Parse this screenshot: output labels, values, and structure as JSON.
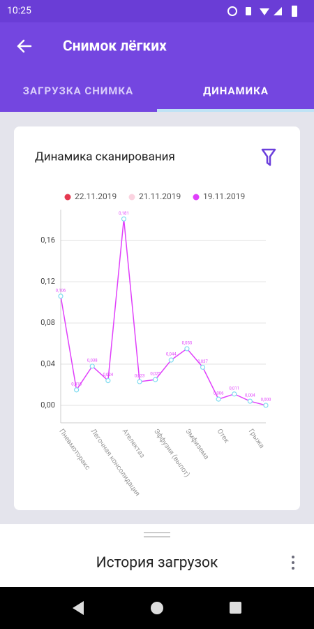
{
  "status_bar": {
    "time": "10:25"
  },
  "app_bar": {
    "title": "Снимок лёгких"
  },
  "tabs": [
    "ЗАГРУЗКА СНИМКА",
    "ДИНАМИКА"
  ],
  "card": {
    "title": "Динамика сканирования"
  },
  "bottom_sheet": {
    "title": "История загрузок"
  },
  "chart_data": {
    "type": "line",
    "categories": [
      "Пневмоторакс",
      null,
      "Легочная консолидация",
      null,
      "Ателектаз",
      null,
      "Эффузия (выпот)",
      null,
      "Эмфизема",
      null,
      "Отек",
      null,
      "Грыжа",
      null
    ],
    "series": [
      {
        "name": "22.11.2019",
        "color": "#e53950",
        "values": [
          null,
          null,
          null,
          null,
          null,
          null,
          null,
          null,
          null,
          null,
          null,
          null,
          null,
          null
        ]
      },
      {
        "name": "21.11.2019",
        "color": "#fbd3e0",
        "values": [
          null,
          null,
          null,
          null,
          null,
          null,
          null,
          null,
          null,
          null,
          null,
          null,
          null,
          null
        ]
      },
      {
        "name": "19.11.2019",
        "color": "#e040fb",
        "point_color": "#7fdcf0",
        "values": [
          0.106,
          0.015,
          0.038,
          0.024,
          0.181,
          0.023,
          0.025,
          0.044,
          0.055,
          0.037,
          0.006,
          0.011,
          0.004,
          0.0
        ],
        "value_labels": [
          "0,106",
          "0,015",
          "0,038",
          "0,024",
          "0,181",
          "0,023",
          "0,025",
          "0,044",
          "0,055",
          "0,037",
          "0,006",
          "0,011",
          "0,004",
          "0,000"
        ]
      }
    ],
    "ylim": [
      -0.017,
      0.19
    ],
    "yticks": [
      {
        "value": 0,
        "label": "0,00"
      },
      {
        "value": 0.04,
        "label": "0,04"
      },
      {
        "value": 0.08,
        "label": "0,08"
      },
      {
        "value": 0.12,
        "label": "0,12"
      },
      {
        "value": 0.16,
        "label": "0,16"
      }
    ],
    "grid": true
  }
}
